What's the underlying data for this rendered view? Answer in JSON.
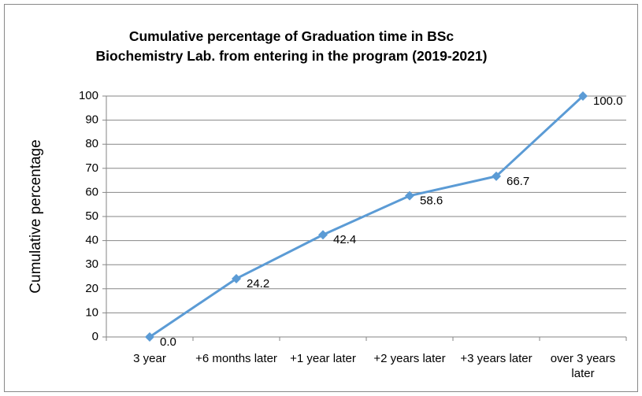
{
  "chart_data": {
    "type": "line",
    "title": "Cumulative percentage of Graduation time in BSc Biochemistry Lab. from entering in the program (2019-2021)",
    "y_label": "Cumulative percentage",
    "categories": [
      "3 year",
      "+6 months later",
      "+1 year later",
      "+2 years later",
      "+3 years later",
      "over 3 years later"
    ],
    "series": [
      {
        "name": "Cumulative percentage",
        "color": "#5b9bd5",
        "values": [
          0,
          24.2,
          42.4,
          58.6,
          66.7,
          100
        ],
        "value_labels": [
          "0.0",
          "24.2",
          "42.4",
          "58.6",
          "66.7",
          "100.0"
        ]
      }
    ],
    "ylim": [
      0,
      100
    ],
    "yticks": [
      0,
      10,
      20,
      30,
      40,
      50,
      60,
      70,
      80,
      90,
      100
    ],
    "grid": true
  }
}
